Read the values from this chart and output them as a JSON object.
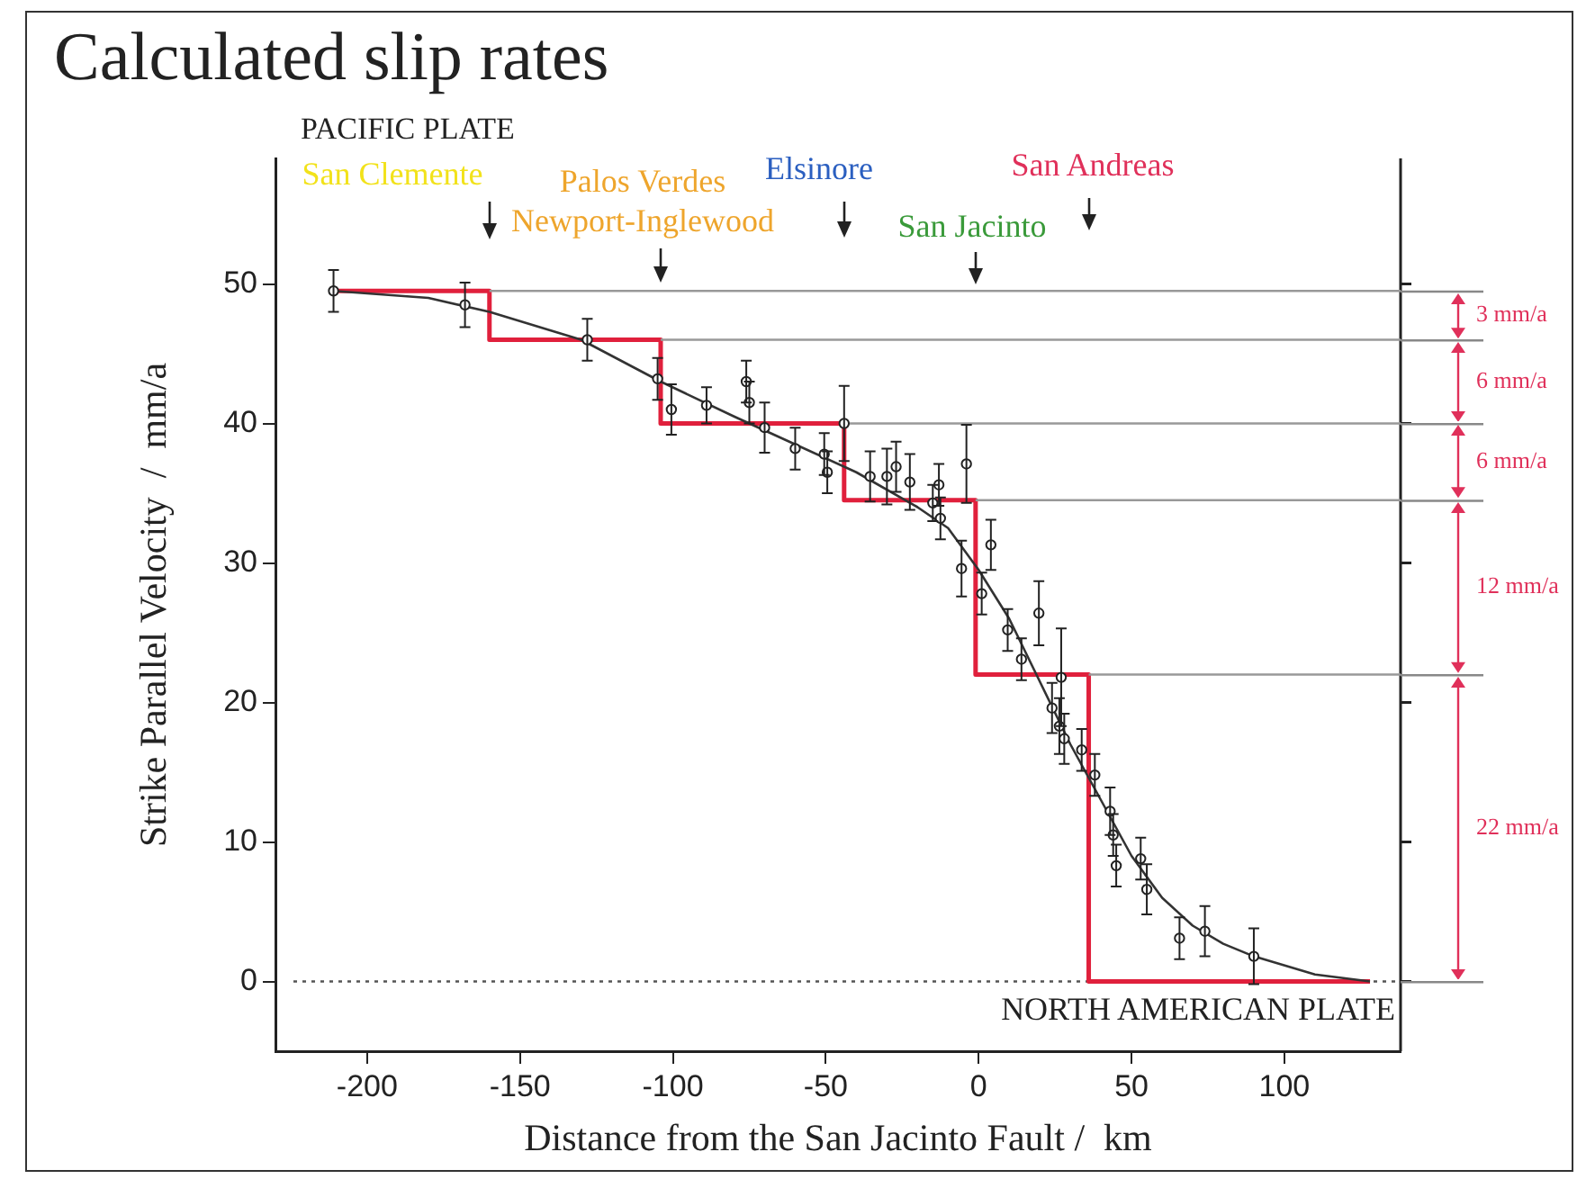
{
  "chart_data": {
    "type": "scatter",
    "title": "Calculated slip rates",
    "subtitle": "PACIFIC PLATE",
    "xlabel": "Distance from the San Jacinto Fault /  km",
    "ylabel": "Strike Parallel Velocity  /  mm/a",
    "xlim": [
      -230,
      138
    ],
    "xticks": [
      -200,
      -150,
      -100,
      -50,
      0,
      50,
      100
    ],
    "ylim": [
      -5,
      59
    ],
    "yticks": [
      0,
      10,
      20,
      30,
      40,
      50
    ],
    "grid": false,
    "legend": false,
    "marker": "circle",
    "series": [
      {
        "type": "line",
        "color": "#999999",
        "marker": "none",
        "x": [
          -160,
          138
        ],
        "values": [
          49.5,
          49.5
        ]
      },
      {
        "type": "line",
        "color": "#999999",
        "marker": "none",
        "x": [
          -104,
          138
        ],
        "values": [
          46,
          46
        ]
      },
      {
        "type": "line",
        "color": "#999999",
        "marker": "none",
        "x": [
          -44,
          138
        ],
        "values": [
          40,
          40
        ]
      },
      {
        "type": "line",
        "color": "#999999",
        "marker": "none",
        "x": [
          -1,
          138
        ],
        "values": [
          34.5,
          34.5
        ]
      },
      {
        "type": "line",
        "color": "#999999",
        "marker": "none",
        "x": [
          36,
          138
        ],
        "values": [
          22,
          22
        ]
      },
      {
        "type": "line",
        "color": "#333333",
        "marker": "none",
        "x": [
          -211,
          -180,
          -160,
          -130,
          -104,
          -80,
          -60,
          -40,
          -20,
          -10,
          0,
          10,
          20,
          30,
          40,
          50,
          60,
          70,
          80,
          90,
          110,
          128
        ],
        "values": [
          49.5,
          49,
          48,
          46,
          43,
          40.5,
          38.5,
          36.5,
          34,
          32.5,
          29.5,
          26,
          21.5,
          17,
          13,
          9,
          6,
          4,
          2.7,
          1.8,
          0.5,
          0
        ]
      },
      {
        "type": "step",
        "color": "#e0203c",
        "marker": "none",
        "x": [
          -211,
          -160,
          -104,
          -44,
          -1,
          36,
          128
        ],
        "values": [
          49.5,
          46,
          40,
          34.5,
          22,
          0,
          0
        ]
      },
      {
        "color": "#222222",
        "x": [
          -211,
          -168,
          -128,
          -105,
          -100.5,
          -89,
          -76,
          -75,
          -70,
          -60,
          -50.5,
          -49.5,
          -44,
          -35.5,
          -30,
          -27,
          -22.5,
          -15,
          -13,
          -12.5,
          -4,
          -5.6,
          1,
          4,
          9.5,
          14,
          19.7,
          24,
          27,
          26.4,
          28,
          33.7,
          38,
          43,
          44,
          45,
          53,
          55,
          65.7,
          74,
          90
        ],
        "values": [
          49.5,
          48.5,
          46,
          43.2,
          41,
          41.3,
          43,
          41.5,
          39.7,
          38.2,
          37.8,
          36.5,
          40,
          36.2,
          36.2,
          36.9,
          35.8,
          34.3,
          35.6,
          33.2,
          37.1,
          29.6,
          27.8,
          31.3,
          25.2,
          23.1,
          26.4,
          19.6,
          21.8,
          18.3,
          17.4,
          16.6,
          14.8,
          12.2,
          10.5,
          8.3,
          8.8,
          6.6,
          3.1,
          3.6,
          1.8
        ],
        "errors": [
          1.5,
          1.6,
          1.5,
          1.5,
          1.8,
          1.3,
          1.5,
          1.5,
          1.8,
          1.5,
          1.5,
          1.5,
          2.7,
          1.8,
          2,
          1.8,
          2,
          1.3,
          1.5,
          1.5,
          2.8,
          2,
          1.5,
          1.8,
          1.5,
          1.5,
          2.3,
          1.8,
          3.5,
          2,
          1.8,
          1.5,
          1.5,
          1.7,
          1.5,
          1.5,
          1.5,
          1.8,
          1.5,
          1.8,
          2
        ]
      }
    ],
    "ref_lines": [
      {
        "axis": "y",
        "value": 0,
        "color": "#555555",
        "line_style": "dotted"
      }
    ],
    "annotations": [
      "San Clemente",
      "Palos Verdes",
      "Newport-Inglewood",
      "Elsinore",
      "San Jacinto",
      "San Andreas",
      "NORTH AMERICAN PLATE",
      "3 mm/a",
      "6 mm/a",
      "6 mm/a",
      "12 mm/a",
      "22 mm/a"
    ]
  }
}
